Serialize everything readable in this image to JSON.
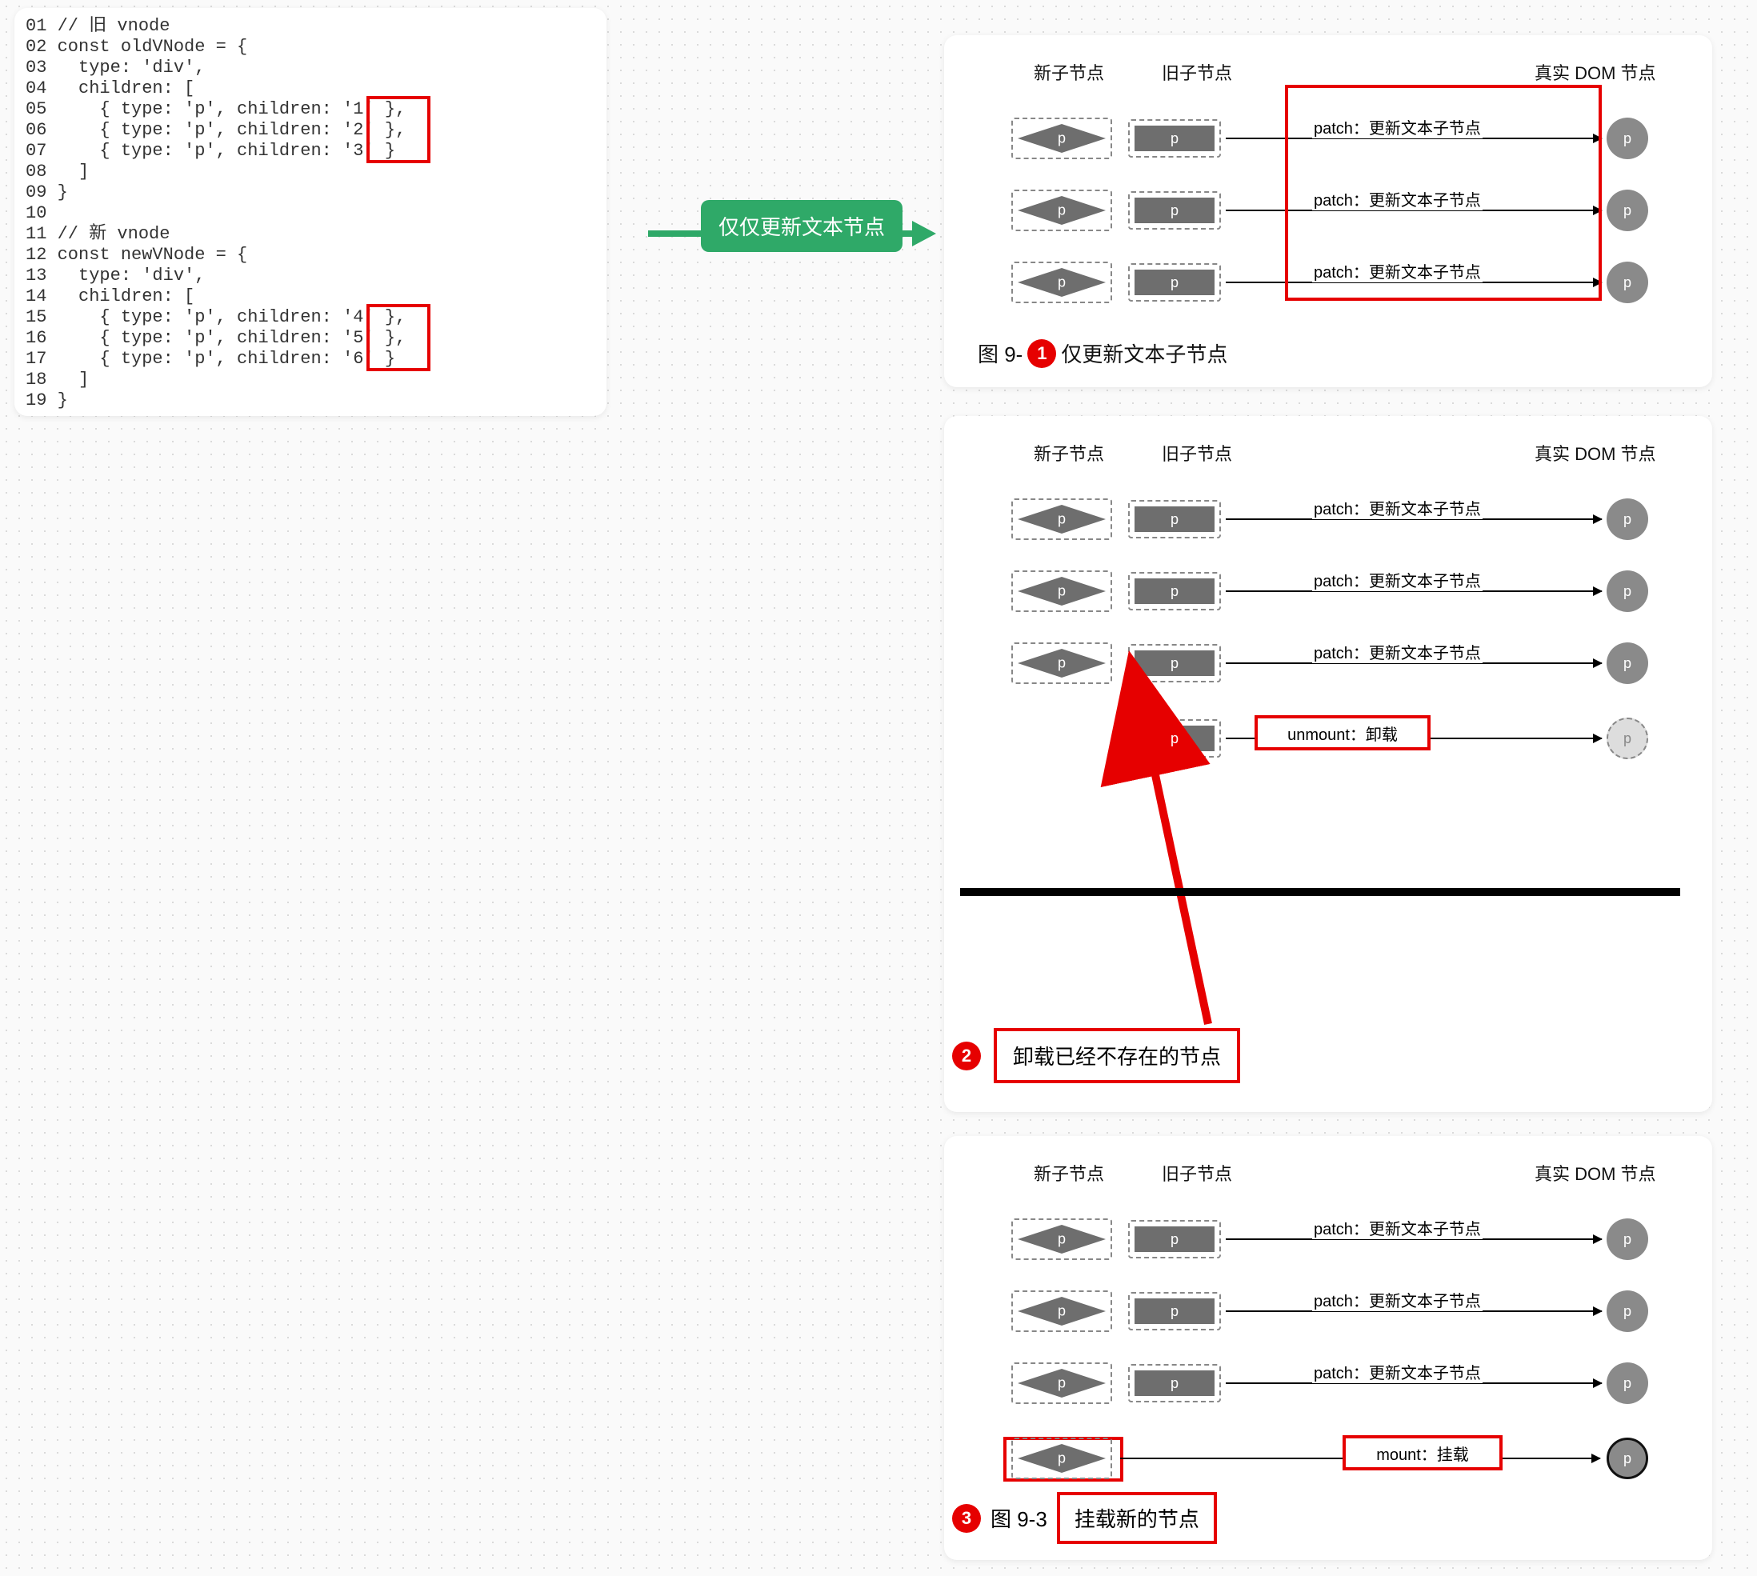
{
  "colors": {
    "red": "#e60000",
    "green": "#2fa968",
    "node_fill": "#6e6e6e",
    "circle_fill": "#8a8a8a",
    "dashed_border": "#888888",
    "bg": "#fafafa",
    "dot": "#d0d0d0"
  },
  "code": {
    "lines": [
      "// 旧 vnode",
      "const oldVNode = {",
      "  type: 'div',",
      "  children: [",
      "    { type: 'p', children: '1' },",
      "    { type: 'p', children: '2' },",
      "    { type: 'p', children: '3' }",
      "  ]",
      "}",
      "",
      "// 新 vnode",
      "const newVNode = {",
      "  type: 'div',",
      "  children: [",
      "    { type: 'p', children: '4' },",
      "    { type: 'p', children: '5' },",
      "    { type: 'p', children: '6' }",
      "  ]",
      "}"
    ],
    "highlight_boxes": [
      {
        "top_line": 5,
        "height_lines": 3,
        "left_ch": 26,
        "width_ch": 5
      },
      {
        "top_line": 15,
        "height_lines": 3,
        "left_ch": 26,
        "width_ch": 5
      }
    ]
  },
  "arrow_label": "仅仅更新文本节点",
  "headers": {
    "new": "新子节点",
    "old": "旧子节点",
    "dom": "真实 DOM 节点"
  },
  "patch_text": "patch：更新文本子节点",
  "unmount_text": "unmount：卸载",
  "mount_text": "mount：挂载",
  "p_label": "p",
  "fig1": {
    "rows": 3,
    "caption_prefix": "图 9-",
    "caption_num": "1",
    "caption_text": "仅更新文本子节点"
  },
  "fig2": {
    "rows": 3,
    "caption_num": "2",
    "caption_text": "卸载已经不存在的节点"
  },
  "fig3": {
    "rows": 3,
    "caption_prefix": "图 9-3",
    "caption_num": "3",
    "caption_text": "挂载新的节点"
  }
}
